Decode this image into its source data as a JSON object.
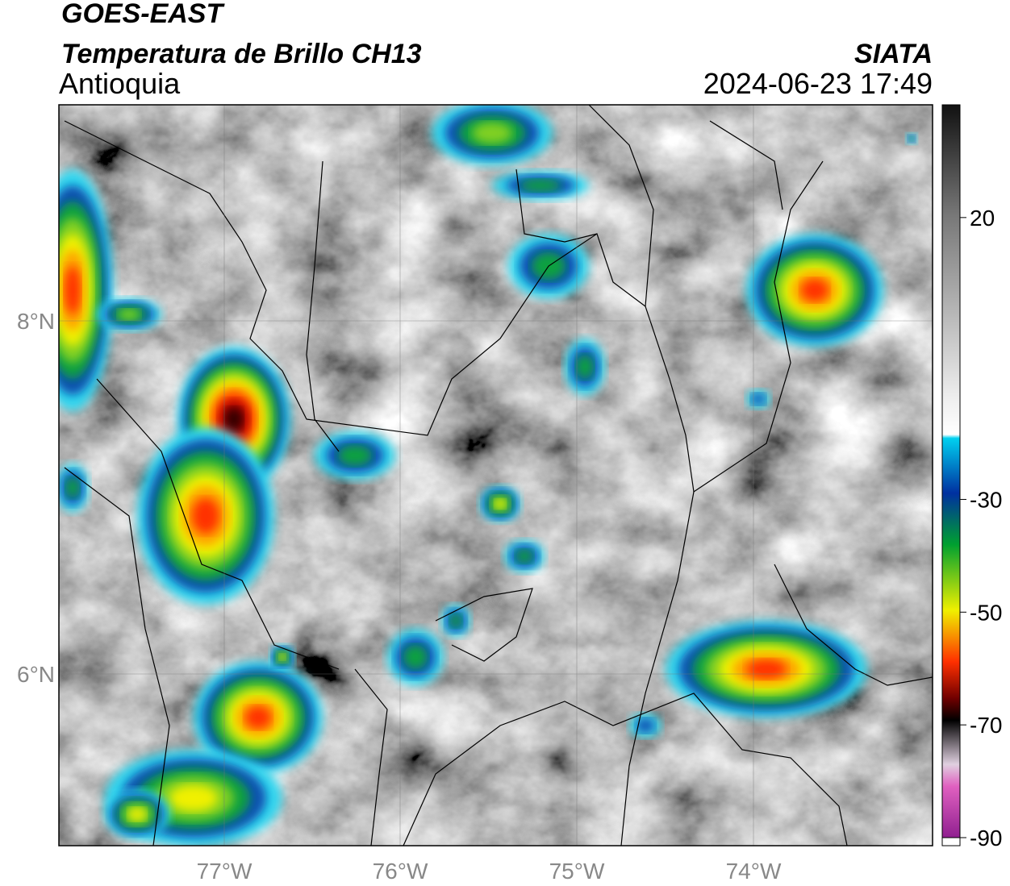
{
  "header": {
    "title": "GOES-EAST",
    "subtitle": "Temperatura de Brillo CH13",
    "region": "Antioquia",
    "source": "SIATA",
    "datetime": "2024-06-23 17:49"
  },
  "map": {
    "lat_labels": [
      "8°N",
      "6°N"
    ],
    "lon_labels": [
      "77°W",
      "76°W",
      "75°W",
      "74°W"
    ]
  },
  "colorbar": {
    "range": [
      -90,
      40
    ],
    "ticks": [
      20,
      -30,
      -50,
      -70,
      -90
    ]
  }
}
